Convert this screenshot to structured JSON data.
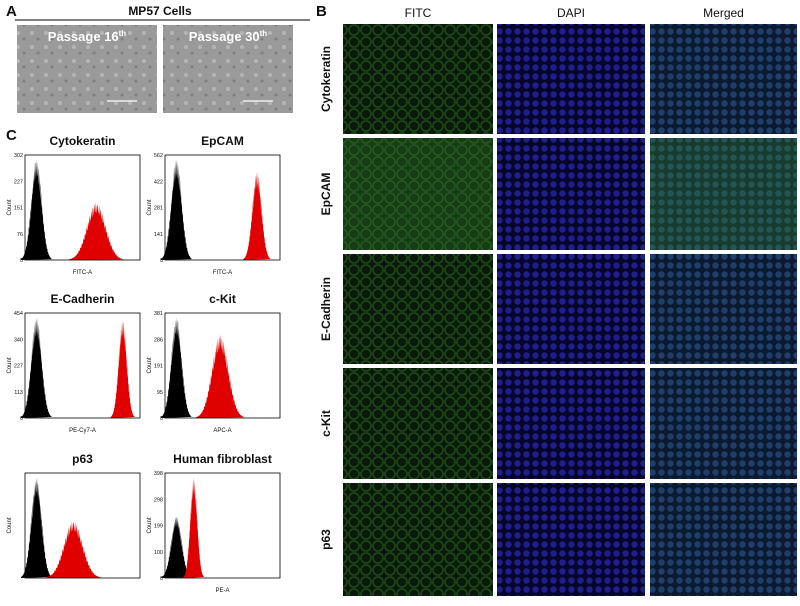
{
  "panels": {
    "a": {
      "label": "A",
      "title": "MP57 Cells",
      "images": [
        {
          "label": "Passage 16",
          "sup": "th"
        },
        {
          "label": "Passage 30",
          "sup": "th"
        }
      ]
    },
    "b": {
      "label": "B",
      "columns": [
        "FITC",
        "DAPI",
        "Merged"
      ],
      "rows": [
        "Cytokeratin",
        "EpCAM",
        "E-Cadherin",
        "c-Kit",
        "p63"
      ]
    },
    "c": {
      "label": "C",
      "plots": [
        {
          "title": "Cytokeratin",
          "ylabel": "Count",
          "xlabel": "FITC-A",
          "yticks": [
            "302",
            "227",
            "151",
            "76",
            "0"
          ]
        },
        {
          "title": "EpCAM",
          "ylabel": "Count",
          "xlabel": "FITC-A",
          "yticks": [
            "562",
            "422",
            "281",
            "141",
            "0"
          ]
        },
        {
          "title": "E-Cadherin",
          "ylabel": "Count",
          "xlabel": "PE-Cy7-A",
          "yticks": [
            "454",
            "340",
            "227",
            "113",
            "0"
          ]
        },
        {
          "title": "c-Kit",
          "ylabel": "Count",
          "xlabel": "APC-A",
          "yticks": [
            "381",
            "286",
            "191",
            "95",
            "0"
          ]
        },
        {
          "title": "p63",
          "ylabel": "Count",
          "xlabel": "",
          "yticks": []
        },
        {
          "title": "Human fibroblast",
          "ylabel": "Count",
          "xlabel": "PE-A",
          "yticks": [
            "398",
            "298",
            "199",
            "100",
            "0"
          ]
        }
      ]
    }
  }
}
